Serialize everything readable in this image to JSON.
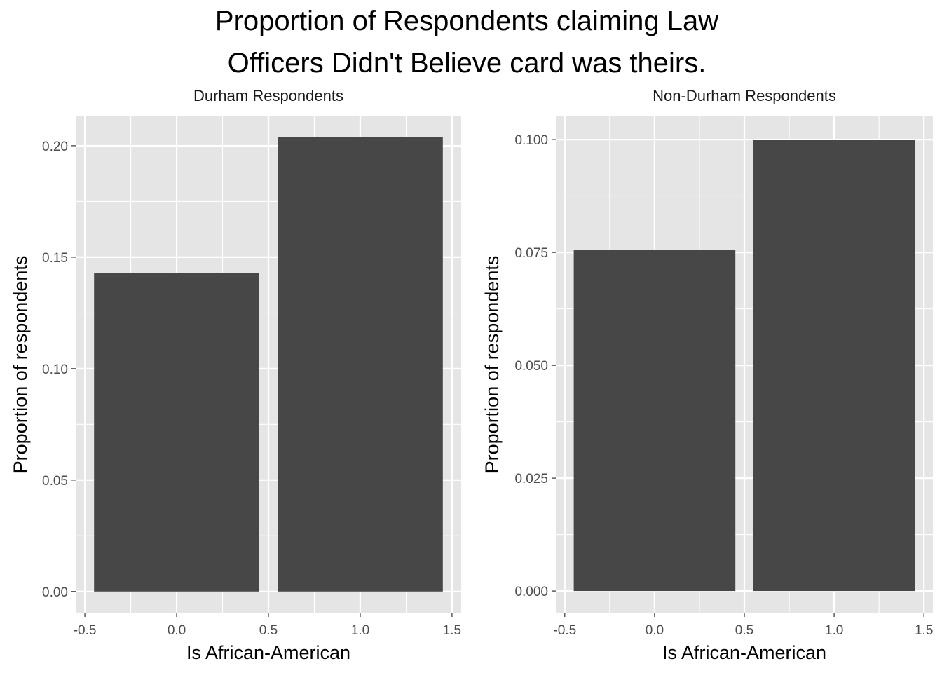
{
  "title_lines": [
    "Proportion of Respondents claiming Law",
    "Officers Didn't Believe card was theirs."
  ],
  "colors": {
    "panel_background": "#e5e5e5",
    "grid_major": "#ffffff",
    "bar_fill": "#474747",
    "tick_text": "#4d4d4d"
  },
  "chart_data": [
    {
      "type": "bar",
      "facet_label": "Durham Respondents",
      "xlabel": "Is African-American",
      "ylabel": "Proportion of respondents",
      "x": [
        0,
        1
      ],
      "values": [
        0.143,
        0.204
      ],
      "bar_width": 0.9,
      "xlim": [
        -0.55,
        1.55
      ],
      "ylim": [
        -0.0095,
        0.2135
      ],
      "x_ticks": [
        -0.5,
        0.0,
        0.5,
        1.0,
        1.5
      ],
      "x_tick_labels": [
        "-0.5",
        "0.0",
        "0.5",
        "1.0",
        "1.5"
      ],
      "y_ticks": [
        0,
        0.05,
        0.1,
        0.15,
        0.2
      ],
      "y_tick_labels": [
        "0.00",
        "0.05",
        "0.10",
        "0.15",
        "0.20"
      ],
      "grid": true
    },
    {
      "type": "bar",
      "facet_label": "Non-Durham Respondents",
      "xlabel": "Is African-American",
      "ylabel": "Proportion of respondents",
      "x": [
        0,
        1
      ],
      "values": [
        0.0755,
        0.1
      ],
      "bar_width": 0.9,
      "xlim": [
        -0.55,
        1.55
      ],
      "ylim": [
        -0.0048,
        0.1053
      ],
      "x_ticks": [
        -0.5,
        0.0,
        0.5,
        1.0,
        1.5
      ],
      "x_tick_labels": [
        "-0.5",
        "0.0",
        "0.5",
        "1.0",
        "1.5"
      ],
      "y_ticks": [
        0,
        0.025,
        0.05,
        0.075,
        0.1
      ],
      "y_tick_labels": [
        "0.000",
        "0.025",
        "0.050",
        "0.075",
        "0.100"
      ],
      "grid": true
    }
  ]
}
